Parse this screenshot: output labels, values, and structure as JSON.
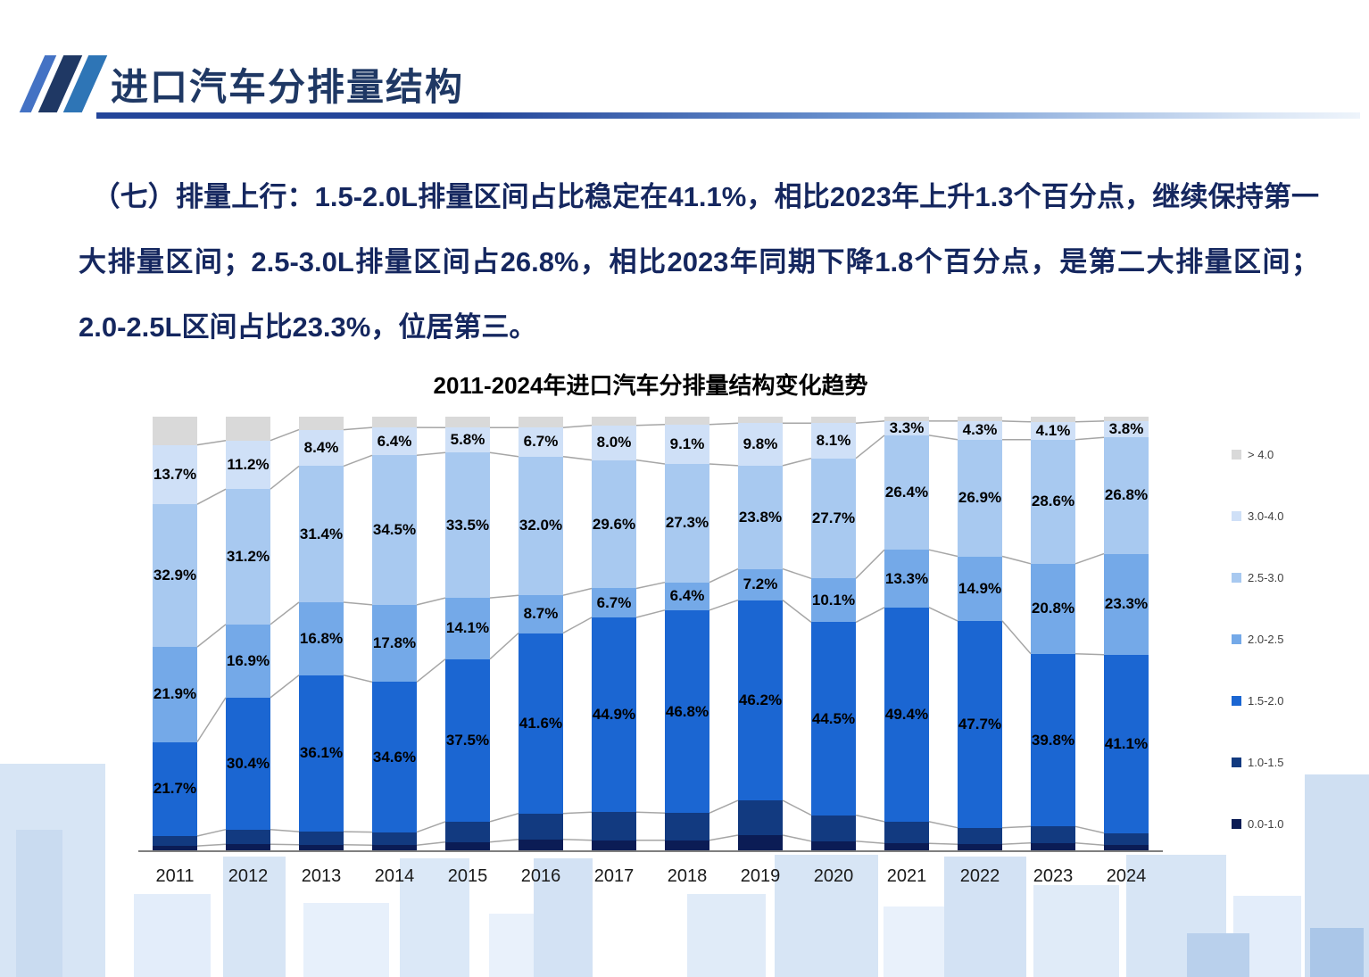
{
  "page": {
    "title": "进口汽车分排量结构"
  },
  "intro": {
    "text": "（七）排量上行：1.5-2.0L排量区间占比稳定在41.1%，相比2023年上升1.3个百分点，继续保持第一大排量区间；2.5-3.0L排量区间占26.8%，相比2023年同期下降1.8个百分点，是第二大排量区间；2.0-2.5L区间占比23.3%，位居第三。"
  },
  "chart_data": {
    "type": "bar",
    "stacked": true,
    "title": "2011-2024年进口汽车分排量结构变化趋势",
    "categories": [
      "2011",
      "2012",
      "2013",
      "2014",
      "2015",
      "2016",
      "2017",
      "2018",
      "2019",
      "2020",
      "2021",
      "2022",
      "2023",
      "2024"
    ],
    "unit": "%",
    "ylim": [
      0,
      100
    ],
    "grid": false,
    "legend_position": "right",
    "connector_line_color": "#a6a6a6",
    "legend": [
      "> 4.0",
      "3.0-4.0",
      "2.5-3.0",
      "2.0-2.5",
      "1.5-2.0",
      "1.0-1.5",
      "0.0-1.0"
    ],
    "series": [
      {
        "name": "0.0-1.0",
        "color": "#0b1c55",
        "labels_shown": false,
        "estimated": true,
        "values": [
          1.0,
          1.4,
          1.3,
          1.2,
          1.9,
          2.5,
          2.3,
          2.3,
          3.5,
          2.1,
          1.6,
          1.4,
          1.7,
          1.2
        ]
      },
      {
        "name": "1.0-1.5",
        "color": "#123a80",
        "labels_shown": false,
        "estimated": true,
        "values": [
          2.3,
          3.4,
          3.0,
          3.0,
          4.7,
          6.0,
          6.5,
          6.3,
          8.0,
          6.0,
          5.0,
          3.8,
          3.8,
          2.8
        ]
      },
      {
        "name": "1.5-2.0",
        "color": "#1b66d2",
        "labels_shown": true,
        "values": [
          21.7,
          30.4,
          36.1,
          34.6,
          37.5,
          41.6,
          44.9,
          46.8,
          46.2,
          44.5,
          49.4,
          47.7,
          39.8,
          41.1
        ]
      },
      {
        "name": "2.0-2.5",
        "color": "#74a9e8",
        "labels_shown": true,
        "values": [
          21.9,
          16.9,
          16.8,
          17.8,
          14.1,
          8.7,
          6.7,
          6.4,
          7.2,
          10.1,
          13.3,
          14.9,
          20.8,
          23.3
        ]
      },
      {
        "name": "2.5-3.0",
        "color": "#a8c9f0",
        "labels_shown": true,
        "values": [
          32.9,
          31.2,
          31.4,
          34.5,
          33.5,
          32.0,
          29.6,
          27.3,
          23.8,
          27.7,
          26.4,
          26.9,
          28.6,
          26.8
        ]
      },
      {
        "name": "3.0-4.0",
        "color": "#cfe0f7",
        "labels_shown": true,
        "values": [
          13.7,
          11.2,
          8.4,
          6.4,
          5.8,
          6.7,
          8.0,
          9.1,
          9.8,
          8.1,
          3.3,
          4.3,
          4.1,
          3.8
        ]
      },
      {
        "name": "> 4.0",
        "color": "#d9d9d9",
        "labels_shown": false,
        "estimated": true,
        "values": [
          6.5,
          5.5,
          3.0,
          2.5,
          2.5,
          2.5,
          2.0,
          1.8,
          1.5,
          1.5,
          1.0,
          1.0,
          1.2,
          1.0
        ]
      }
    ]
  }
}
